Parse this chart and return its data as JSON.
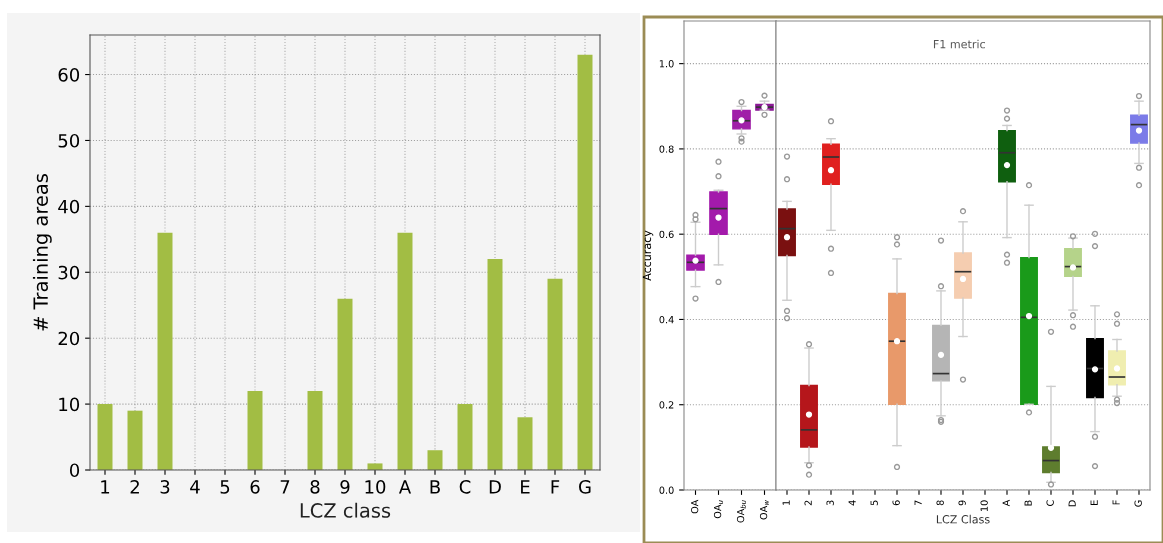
{
  "chart_data": [
    {
      "type": "bar",
      "xlabel": "LCZ class",
      "ylabel": "# Training areas",
      "categories": [
        "1",
        "2",
        "3",
        "4",
        "5",
        "6",
        "7",
        "8",
        "9",
        "10",
        "A",
        "B",
        "C",
        "D",
        "E",
        "F",
        "G"
      ],
      "values": [
        10,
        9,
        36,
        0,
        0,
        12,
        0,
        12,
        26,
        1,
        36,
        3,
        10,
        32,
        8,
        29,
        63
      ],
      "color": "#a2bd44",
      "ylim": [
        0,
        66
      ],
      "yticks": [
        0,
        10,
        20,
        30,
        40,
        50,
        60
      ],
      "grid": true
    },
    {
      "type": "box",
      "ylabel": "Accuracy",
      "categories": [
        "OA",
        "OA$_{u}$",
        "OA$_{bu}$",
        "OA$_{w}$"
      ],
      "colors": [
        "#a31aab",
        "#a31aab",
        "#a01fa8",
        "#8b1a96"
      ],
      "boxes": [
        {
          "low": 0.477,
          "q1": 0.516,
          "median": 0.534,
          "q3": 0.551,
          "high": 0.628,
          "mean": 0.538,
          "outliers": [
            0.449,
            0.635,
            0.645
          ]
        },
        {
          "low": 0.528,
          "q1": 0.6,
          "median": 0.66,
          "q3": 0.699,
          "high": 0.703,
          "mean": 0.639,
          "outliers": [
            0.488,
            0.736,
            0.77
          ]
        },
        {
          "low": 0.835,
          "q1": 0.847,
          "median": 0.866,
          "q3": 0.89,
          "high": 0.9,
          "mean": 0.867,
          "outliers": [
            0.817,
            0.825,
            0.91
          ]
        },
        {
          "low": 0.891,
          "q1": 0.891,
          "median": 0.898,
          "q3": 0.904,
          "high": 0.912,
          "mean": 0.898,
          "outliers": [
            0.88,
            0.925
          ]
        }
      ],
      "ylim": [
        0,
        1.1
      ],
      "yticks": [
        {
          "value": 0,
          "label": "0.0"
        },
        {
          "value": 0.2,
          "label": "0.2"
        },
        {
          "value": 0.4,
          "label": "0.4"
        },
        {
          "value": 0.6,
          "label": "0.6"
        },
        {
          "value": 0.8,
          "label": "0.8"
        },
        {
          "value": 1.0,
          "label": "1.0"
        }
      ],
      "grid": "y"
    },
    {
      "type": "box",
      "xlabel": "LCZ Class",
      "annotations": [
        "F1 metric"
      ],
      "tick_labels": "x",
      "categories": [
        "1",
        "2",
        "3",
        "4",
        "5",
        "6",
        "7",
        "8",
        "9",
        "10",
        "A",
        "B",
        "C",
        "D",
        "E",
        "F",
        "G"
      ],
      "colors": [
        "#7a1010",
        "#b5161b",
        "#e0201f",
        null,
        null,
        "#e8996a",
        null,
        "#b5b5b5",
        "#f5cdb0",
        null,
        "#0f5f0f",
        "#1a9a1a",
        "#5e7d2e",
        "#b5d38a",
        "#000000",
        "#f0eeb0",
        "#7b7be8"
      ],
      "boxes": [
        {
          "low": 0.445,
          "q1": 0.55,
          "median": 0.613,
          "q3": 0.659,
          "high": 0.677,
          "mean": 0.593,
          "outliers": [
            0.403,
            0.42,
            0.729,
            0.782
          ]
        },
        {
          "low": 0.064,
          "q1": 0.101,
          "median": 0.141,
          "q3": 0.245,
          "high": 0.333,
          "mean": 0.177,
          "outliers": [
            0.036,
            0.058,
            0.342
          ]
        },
        {
          "low": 0.609,
          "q1": 0.717,
          "median": 0.781,
          "q3": 0.811,
          "high": 0.824,
          "mean": 0.75,
          "outliers": [
            0.509,
            0.566,
            0.865
          ]
        },
        null,
        null,
        {
          "low": 0.104,
          "q1": 0.201,
          "median": 0.349,
          "q3": 0.461,
          "high": 0.542,
          "mean": 0.349,
          "outliers": [
            0.054,
            0.576,
            0.593
          ]
        },
        null,
        {
          "low": 0.174,
          "q1": 0.256,
          "median": 0.273,
          "q3": 0.386,
          "high": 0.467,
          "mean": 0.317,
          "outliers": [
            0.16,
            0.164,
            0.478,
            0.585
          ]
        },
        {
          "low": 0.36,
          "q1": 0.45,
          "median": 0.512,
          "q3": 0.556,
          "high": 0.629,
          "mean": 0.495,
          "outliers": [
            0.259,
            0.654
          ]
        },
        null,
        {
          "low": 0.592,
          "q1": 0.723,
          "median": 0.791,
          "q3": 0.843,
          "high": 0.855,
          "mean": 0.762,
          "outliers": [
            0.533,
            0.552,
            0.871,
            0.89
          ]
        },
        {
          "low": 0.201,
          "q1": 0.201,
          "median": 0.405,
          "q3": 0.545,
          "high": 0.668,
          "mean": 0.408,
          "outliers": [
            0.182,
            0.715
          ]
        },
        {
          "low": 0.018,
          "q1": 0.041,
          "median": 0.069,
          "q3": 0.101,
          "high": 0.243,
          "mean": 0.099,
          "outliers": [
            0.013,
            0.371
          ]
        },
        {
          "low": 0.422,
          "q1": 0.501,
          "median": 0.524,
          "q3": 0.566,
          "high": 0.591,
          "mean": 0.522,
          "outliers": [
            0.383,
            0.41,
            0.595
          ]
        },
        {
          "low": 0.137,
          "q1": 0.217,
          "median": 0.285,
          "q3": 0.355,
          "high": 0.432,
          "mean": 0.283,
          "outliers": [
            0.056,
            0.125,
            0.572,
            0.601
          ]
        },
        {
          "low": 0.22,
          "q1": 0.247,
          "median": 0.265,
          "q3": 0.326,
          "high": 0.353,
          "mean": 0.285,
          "outliers": [
            0.204,
            0.212,
            0.39,
            0.412
          ]
        },
        {
          "low": 0.766,
          "q1": 0.814,
          "median": 0.857,
          "q3": 0.879,
          "high": 0.912,
          "mean": 0.843,
          "outliers": [
            0.715,
            0.756,
            0.924
          ]
        }
      ],
      "ylim": [
        0,
        1.1
      ],
      "yticks": [
        {
          "value": 0,
          "label": null
        },
        {
          "value": 0.2,
          "label": null
        },
        {
          "value": 0.4,
          "label": null
        },
        {
          "value": 0.6,
          "label": null
        },
        {
          "value": 0.8,
          "label": null
        },
        {
          "value": 1.0,
          "label": null
        }
      ],
      "grid": "y"
    }
  ]
}
